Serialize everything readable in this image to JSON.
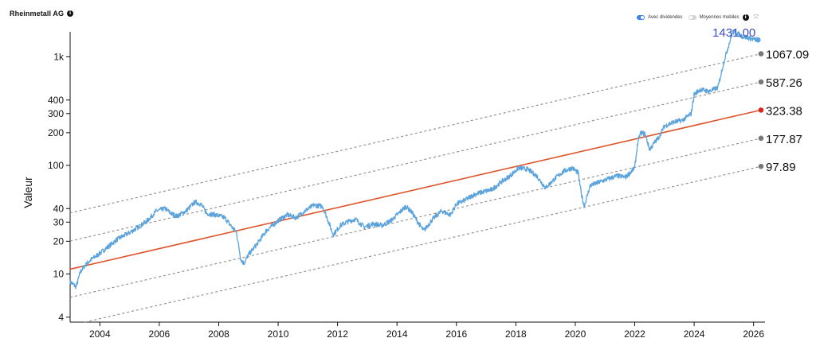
{
  "header": {
    "title": "Rheinmetall AG",
    "info_icon": "info-icon"
  },
  "controls": {
    "dividends_label": "Avec dividendes",
    "dividends_on": true,
    "moving_avg_label": "Moyennes mobiles",
    "moving_avg_on": false,
    "info_icon": "info-icon",
    "expand_icon": "expand-icon"
  },
  "colors": {
    "price": "#5ba3dc",
    "trend": "#e0522a",
    "band": "#8a8a8a",
    "last_label": "#3b4dc4",
    "trend_dot": "#d8261f",
    "band_dot": "#777777"
  },
  "chart_data": {
    "type": "line",
    "ylabel": "Valeur",
    "y_scale": "log",
    "ylim": [
      3.6,
      1700
    ],
    "xlim": [
      2003.0,
      2026.25
    ],
    "x_ticks": [
      2004,
      2006,
      2008,
      2010,
      2012,
      2014,
      2016,
      2018,
      2020,
      2022,
      2024,
      2026
    ],
    "y_ticks": [
      {
        "value": 4,
        "label": "4"
      },
      {
        "value": 10,
        "label": "10"
      },
      {
        "value": 20,
        "label": "20"
      },
      {
        "value": 30,
        "label": "30"
      },
      {
        "value": 40,
        "label": "40"
      },
      {
        "value": 100,
        "label": "100"
      },
      {
        "value": 200,
        "label": "200"
      },
      {
        "value": 300,
        "label": "300"
      },
      {
        "value": 400,
        "label": "400"
      },
      {
        "value": 1000,
        "label": "1k"
      }
    ],
    "last_value_label": "1431.00",
    "price_series": {
      "x": [
        2003.0,
        2003.2,
        2003.35,
        2003.5,
        2003.7,
        2004.0,
        2004.3,
        2004.6,
        2005.0,
        2005.3,
        2005.6,
        2005.9,
        2006.2,
        2006.4,
        2006.6,
        2006.9,
        2007.2,
        2007.4,
        2007.6,
        2007.9,
        2008.2,
        2008.4,
        2008.6,
        2008.75,
        2008.85,
        2009.0,
        2009.3,
        2009.6,
        2010.0,
        2010.3,
        2010.6,
        2010.9,
        2011.2,
        2011.5,
        2011.7,
        2011.85,
        2012.1,
        2012.3,
        2012.6,
        2012.9,
        2013.2,
        2013.5,
        2013.8,
        2014.0,
        2014.3,
        2014.5,
        2014.7,
        2014.9,
        2015.2,
        2015.5,
        2015.8,
        2016.0,
        2016.3,
        2016.6,
        2016.9,
        2017.2,
        2017.5,
        2017.8,
        2018.1,
        2018.4,
        2018.7,
        2019.0,
        2019.3,
        2019.6,
        2019.9,
        2020.1,
        2020.2,
        2020.3,
        2020.5,
        2020.8,
        2021.1,
        2021.4,
        2021.7,
        2022.0,
        2022.1,
        2022.2,
        2022.35,
        2022.5,
        2022.65,
        2022.8,
        2023.0,
        2023.3,
        2023.6,
        2023.9,
        2024.0,
        2024.2,
        2024.5,
        2024.8,
        2025.0,
        2025.15,
        2025.3,
        2025.45,
        2025.6,
        2025.8,
        2026.0,
        2026.15
      ],
      "y": [
        8.5,
        7.6,
        10.5,
        12.0,
        13.5,
        15.5,
        18.0,
        21.0,
        24.0,
        27.0,
        31.0,
        38.0,
        40.0,
        36.0,
        34.0,
        38.0,
        46.0,
        44.0,
        36.0,
        35.0,
        33.0,
        28.0,
        24.0,
        13.5,
        12.5,
        15.0,
        19.0,
        25.0,
        31.0,
        35.0,
        33.0,
        38.0,
        43.0,
        42.0,
        30.0,
        23.0,
        28.0,
        30.0,
        32.0,
        27.0,
        29.0,
        28.0,
        31.0,
        35.0,
        42.0,
        37.0,
        30.0,
        25.0,
        32.0,
        38.0,
        35.0,
        44.0,
        48.0,
        54.0,
        57.0,
        60.0,
        70.0,
        80.0,
        95.0,
        92.0,
        80.0,
        62.0,
        75.0,
        88.0,
        95.0,
        85.0,
        55.0,
        42.0,
        65.0,
        70.0,
        75.0,
        80.0,
        78.0,
        95.0,
        160.0,
        200.0,
        195.0,
        140.0,
        160.0,
        180.0,
        230.0,
        250.0,
        260.0,
        300.0,
        450.0,
        500.0,
        480.0,
        520.0,
        900.0,
        1250.0,
        1700.0,
        1650.0,
        1550.0,
        1500.0,
        1450.0,
        1431.0
      ]
    },
    "trend_lines": [
      {
        "name": "upper2",
        "start": 36.5,
        "end": 1067.09,
        "label": "1067.09",
        "style": "dashed"
      },
      {
        "name": "upper1",
        "start": 20.1,
        "end": 587.26,
        "label": "587.26",
        "style": "dashed"
      },
      {
        "name": "trend",
        "start": 11.07,
        "end": 323.38,
        "label": "323.38",
        "style": "solid"
      },
      {
        "name": "lower1",
        "start": 6.09,
        "end": 177.87,
        "label": "177.87",
        "style": "dashed"
      },
      {
        "name": "lower2",
        "start": 3.35,
        "end": 97.89,
        "label": "97.89",
        "style": "dashed"
      }
    ]
  }
}
